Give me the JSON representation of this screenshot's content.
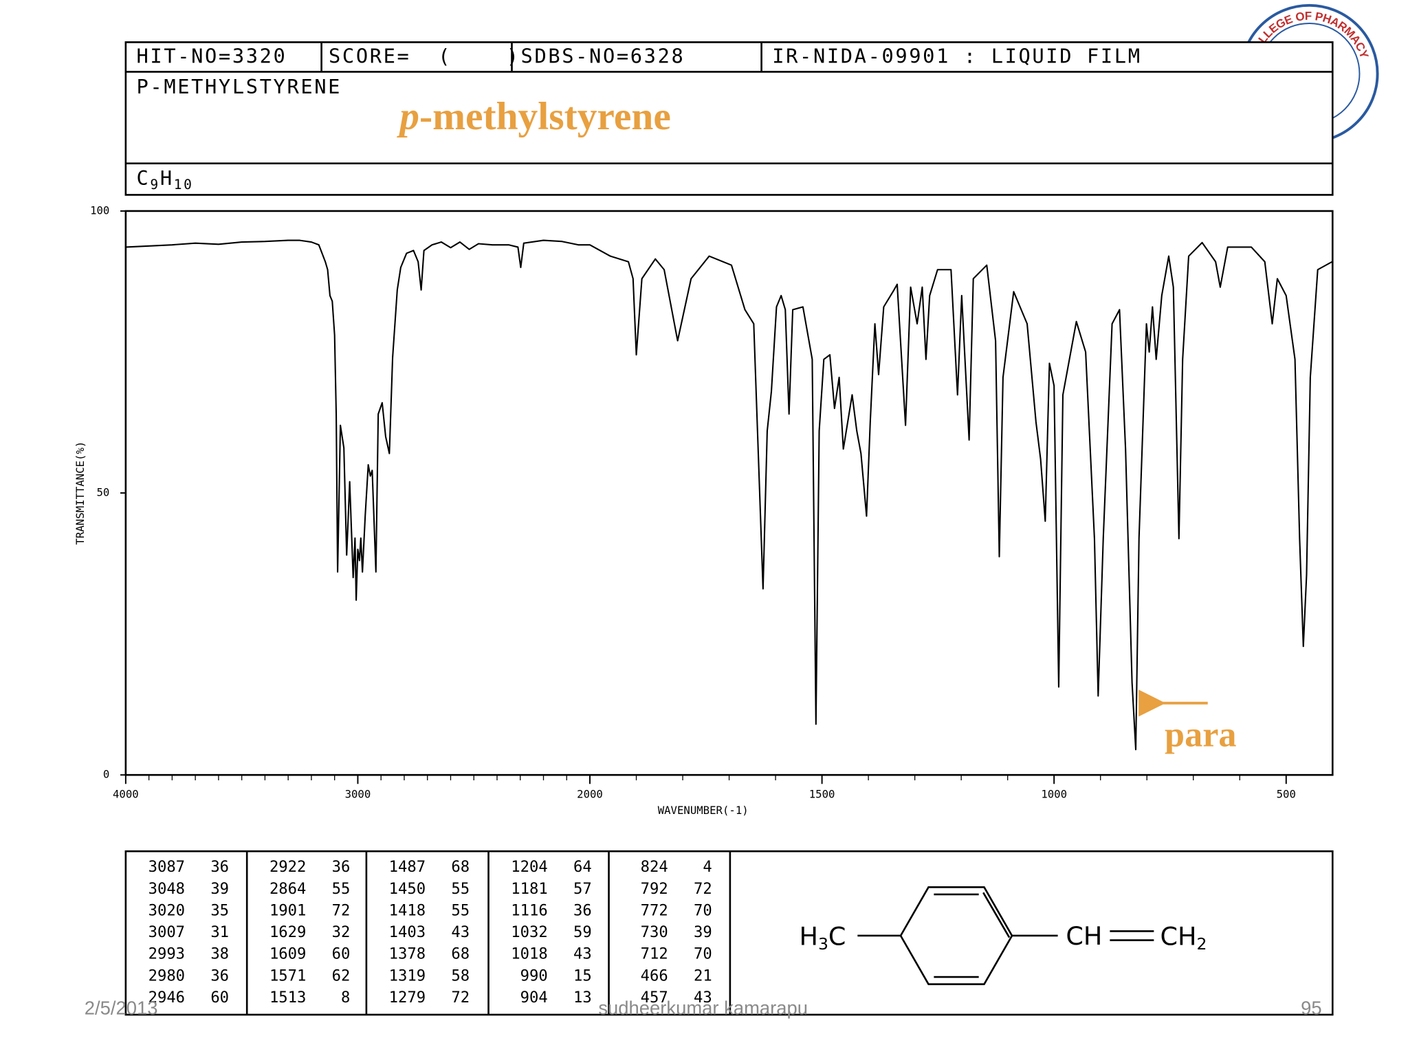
{
  "header": {
    "hit_no": "HIT-NO=3320",
    "score": "SCORE=  (    )",
    "sdbs_no": "SDBS-NO=6328",
    "method": "IR-NIDA-09901 : LIQUID FILM",
    "name": "P-METHYLSTYRENE",
    "formula": [
      "C",
      "9",
      "H",
      "10"
    ]
  },
  "compound_label": {
    "prefix": "p",
    "rest": "-methylstyrene"
  },
  "chart_data": {
    "type": "line",
    "xlabel": "WAVENUMBER(-1)",
    "ylabel": "TRANSMITTANCE(%)",
    "color": "#000000",
    "x": [
      4000,
      3900,
      3800,
      3700,
      3600,
      3500,
      3400,
      3300,
      3250,
      3200,
      3168,
      3140,
      3130,
      3120,
      3110,
      3100,
      3093,
      3087,
      3075,
      3060,
      3048,
      3035,
      3020,
      3012,
      3007,
      3000,
      2993,
      2987,
      2980,
      2968,
      2955,
      2946,
      2938,
      2922,
      2912,
      2895,
      2880,
      2864,
      2850,
      2830,
      2815,
      2790,
      2760,
      2740,
      2727,
      2715,
      2680,
      2640,
      2600,
      2560,
      2520,
      2480,
      2420,
      2350,
      2310,
      2298,
      2285,
      2200,
      2120,
      2050,
      2000,
      1956,
      1917,
      1907,
      1900,
      1888,
      1859,
      1840,
      1811,
      1782,
      1743,
      1695,
      1666,
      1647,
      1627,
      1618,
      1609,
      1598,
      1588,
      1579,
      1571,
      1563,
      1541,
      1521,
      1513,
      1506,
      1496,
      1483,
      1473,
      1463,
      1454,
      1435,
      1425,
      1416,
      1404,
      1396,
      1386,
      1378,
      1367,
      1347,
      1338,
      1320,
      1309,
      1295,
      1284,
      1276,
      1268,
      1251,
      1222,
      1208,
      1199,
      1183,
      1174,
      1145,
      1126,
      1118,
      1110,
      1087,
      1058,
      1039,
      1029,
      1019,
      1010,
      1000,
      990,
      981,
      952,
      932,
      913,
      905,
      894,
      875,
      859,
      846,
      832,
      824,
      817,
      801,
      795,
      788,
      780,
      768,
      753,
      743,
      731,
      723,
      710,
      681,
      652,
      642,
      626,
      575,
      546,
      530,
      519,
      500,
      481,
      471,
      463,
      456,
      448,
      432,
      401
    ],
    "values": [
      93.6,
      93.8,
      94,
      94.3,
      94.1,
      94.5,
      94.6,
      94.8,
      94.8,
      94.5,
      94,
      91,
      89.6,
      85,
      84,
      78,
      64,
      36,
      62,
      58,
      39,
      52,
      35,
      42,
      31,
      40,
      38,
      42,
      36,
      46,
      55,
      53,
      54,
      36,
      64,
      66,
      60,
      57,
      74,
      86,
      90,
      92.5,
      93,
      91,
      86,
      93,
      94,
      94.5,
      93.5,
      94.5,
      93.2,
      94.2,
      94,
      94,
      93.6,
      90,
      94.3,
      94.8,
      94.6,
      94,
      94,
      92,
      91,
      88,
      74.5,
      88,
      91.5,
      89.6,
      77,
      88,
      92,
      90.4,
      82.5,
      80,
      33,
      61,
      68,
      83,
      85,
      82.5,
      64,
      82.5,
      83,
      73.7,
      9,
      61,
      73.7,
      74.5,
      65,
      70.5,
      57.8,
      67.4,
      61,
      57,
      45.9,
      62.6,
      80,
      71,
      83,
      85.7,
      87,
      62,
      86.5,
      80,
      86.5,
      73.7,
      85,
      89.6,
      89.6,
      67.4,
      85,
      59.4,
      88,
      90.4,
      77,
      38.7,
      70.5,
      85.7,
      80,
      62.6,
      56,
      45,
      73,
      69,
      15.6,
      67.4,
      80.4,
      75,
      41.9,
      14,
      42,
      80,
      82.5,
      57.8,
      16.4,
      4.5,
      42,
      80,
      75,
      83,
      73.7,
      85,
      92,
      86.5,
      41.9,
      73.7,
      92,
      94.4,
      91,
      86.5,
      93.6,
      93.6,
      91,
      80,
      88,
      85,
      73.7,
      41.9,
      22.8,
      35.5,
      70.5,
      89.6,
      91
    ],
    "xlim": [
      4000,
      400
    ],
    "ylim": [
      0,
      100
    ],
    "xticks": [
      4000,
      3000,
      2000,
      1500,
      1000,
      500
    ],
    "xticks_minor": [
      3900,
      3800,
      3700,
      3600,
      3500,
      3400,
      3300,
      3200,
      3100,
      2900,
      2800,
      2700,
      2600,
      2500,
      2400,
      2300,
      2200,
      2100,
      1900,
      1800,
      1700,
      1600,
      1400,
      1300,
      1200,
      1100,
      900,
      800,
      700,
      600
    ],
    "yticks": [
      0,
      50,
      100
    ],
    "xscale_break": 2000,
    "xscale_ratio": 2,
    "annotations": [
      {
        "text": "para"
      }
    ]
  },
  "peak_table": {
    "columns": [
      [
        [
          3087,
          36
        ],
        [
          3048,
          39
        ],
        [
          3020,
          35
        ],
        [
          3007,
          31
        ],
        [
          2993,
          38
        ],
        [
          2980,
          36
        ],
        [
          2946,
          60
        ]
      ],
      [
        [
          2922,
          36
        ],
        [
          2864,
          55
        ],
        [
          1901,
          72
        ],
        [
          1629,
          32
        ],
        [
          1609,
          60
        ],
        [
          1571,
          62
        ],
        [
          1513,
          8
        ]
      ],
      [
        [
          1487,
          68
        ],
        [
          1450,
          55
        ],
        [
          1418,
          55
        ],
        [
          1403,
          43
        ],
        [
          1378,
          68
        ],
        [
          1319,
          58
        ],
        [
          1279,
          72
        ]
      ],
      [
        [
          1204,
          64
        ],
        [
          1181,
          57
        ],
        [
          1116,
          36
        ],
        [
          1032,
          59
        ],
        [
          1018,
          43
        ],
        [
          990,
          15
        ],
        [
          904,
          13
        ]
      ],
      [
        [
          824,
          4
        ],
        [
          792,
          72
        ],
        [
          772,
          70
        ],
        [
          730,
          39
        ],
        [
          712,
          70
        ],
        [
          466,
          21
        ],
        [
          457,
          43
        ]
      ]
    ]
  },
  "structure": {
    "left": [
      "H",
      "3",
      "C"
    ],
    "right_1": "CH",
    "right_2": [
      "CH",
      "2"
    ]
  },
  "footer": {
    "date": "2/5/2013",
    "author": "sudheerkumar kamarapu",
    "page": "95"
  },
  "logo": {
    "text": "COLLEGE OF PHARMACY"
  }
}
